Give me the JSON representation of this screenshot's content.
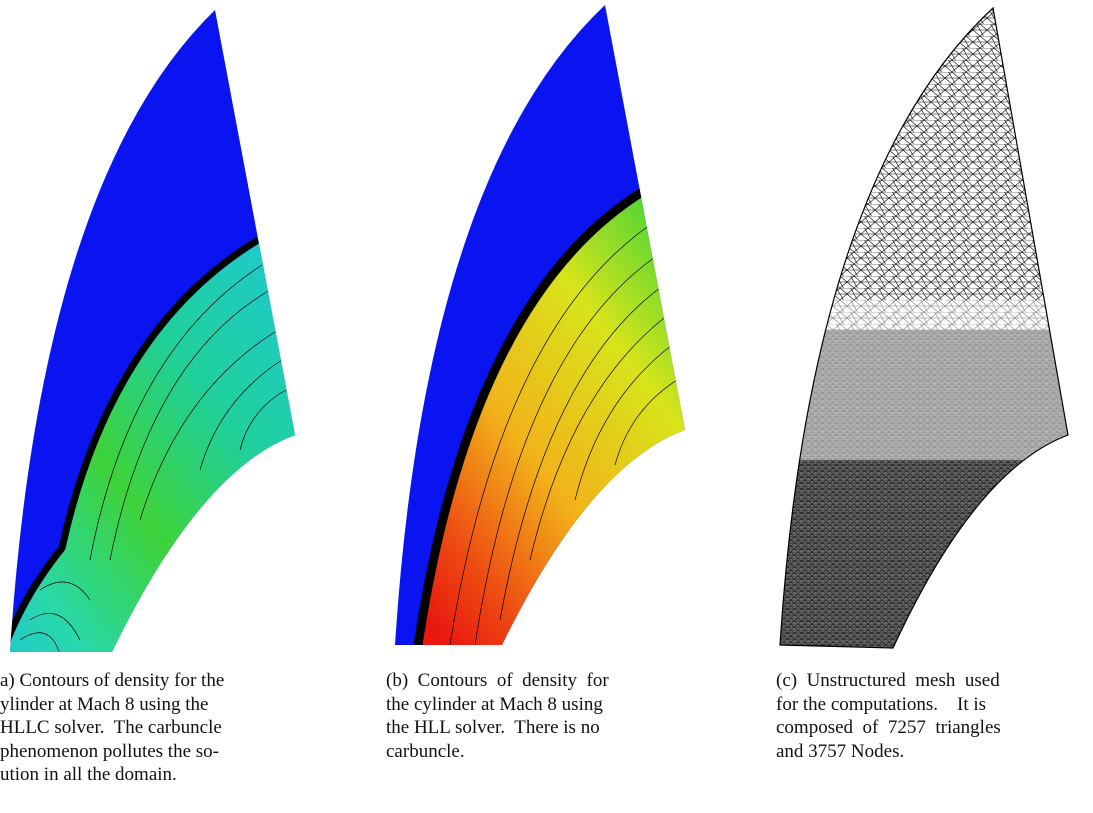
{
  "figure": {
    "subfigures": [
      {
        "caption_lines": [
          "a) Contours of density for the",
          "ylinder at Mach 8 using the",
          "HLLC solver.  The carbuncle",
          "phenomenon pollutes the so-",
          "ution in all the domain."
        ]
      },
      {
        "caption_lines": [
          "(b)  Contours  of  density  for",
          "the cylinder at Mach 8 using",
          "the HLL solver.  There is no",
          "carbuncle."
        ]
      },
      {
        "caption_lines": [
          "(c)  Unstructured  mesh  used",
          "for the computations.    It is",
          "composed  of  7257  triangles",
          "and 3757 Nodes."
        ]
      }
    ]
  }
}
